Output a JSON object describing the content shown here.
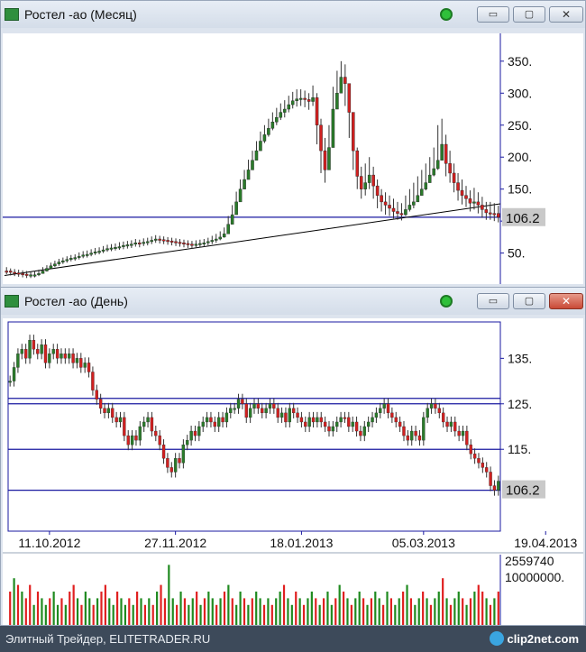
{
  "windows": [
    {
      "title": "Ростел -ао (Месяц)",
      "buttons": {
        "minimize": "▭",
        "maximize": "▢",
        "close": "✕"
      }
    },
    {
      "title": "Ростел -ао (День)",
      "buttons": {
        "minimize": "▭",
        "maximize": "▢",
        "close": "✕"
      }
    }
  ],
  "footer": {
    "left_text": "Элитный Трейдер, ELITETRADER.RU",
    "logo_text": "clip2net.com"
  },
  "colors": {
    "up": "#2a7a2a",
    "down": "#d02020",
    "hline": "#1a1aa0",
    "trend": "#000000",
    "wick": "#333333"
  },
  "chart_data": [
    {
      "type": "candlestick",
      "title": "Ростел -ао (Месяц)",
      "ylim": [
        10,
        385
      ],
      "y_ticks": [
        50,
        100,
        150,
        200,
        250,
        300,
        350
      ],
      "y_tick_labels": [
        "50.",
        "100.",
        "150.",
        "200.",
        "250.",
        "300.",
        "350."
      ],
      "last_price": 106.2,
      "last_price_label": "106.2",
      "horizontal_lines": [
        106
      ],
      "trendline": {
        "from": [
          0,
          15
        ],
        "to": [
          1,
          127
        ]
      },
      "closes": [
        22,
        20,
        19,
        18,
        17,
        16,
        15,
        16,
        18,
        22,
        26,
        30,
        33,
        36,
        38,
        40,
        42,
        43,
        45,
        47,
        48,
        50,
        52,
        53,
        55,
        57,
        58,
        59,
        60,
        62,
        63,
        64,
        66,
        65,
        67,
        68,
        70,
        72,
        71,
        70,
        69,
        68,
        67,
        66,
        65,
        64,
        63,
        64,
        65,
        66,
        68,
        70,
        72,
        75,
        80,
        95,
        110,
        130,
        150,
        165,
        180,
        195,
        210,
        225,
        235,
        245,
        255,
        262,
        270,
        275,
        282,
        288,
        291,
        292,
        290,
        287,
        293,
        250,
        210,
        180,
        215,
        275,
        300,
        325,
        315,
        270,
        210,
        170,
        150,
        160,
        172,
        155,
        140,
        130,
        125,
        120,
        115,
        112,
        110,
        118,
        125,
        130,
        140,
        150,
        160,
        172,
        182,
        195,
        220,
        190,
        175,
        160,
        148,
        140,
        135,
        128,
        130,
        125,
        118,
        113,
        112,
        112,
        106
      ],
      "highs": [
        28,
        26,
        25,
        24,
        23,
        22,
        21,
        22,
        24,
        28,
        31,
        35,
        38,
        41,
        43,
        45,
        47,
        48,
        51,
        53,
        54,
        56,
        58,
        59,
        61,
        63,
        64,
        65,
        67,
        68,
        69,
        70,
        72,
        71,
        73,
        74,
        76,
        78,
        77,
        76,
        75,
        74,
        73,
        72,
        71,
        70,
        69,
        70,
        71,
        72,
        74,
        77,
        80,
        84,
        90,
        108,
        125,
        146,
        165,
        180,
        196,
        210,
        225,
        240,
        250,
        260,
        270,
        277,
        284,
        289,
        296,
        302,
        306,
        306,
        304,
        300,
        312,
        300,
        260,
        230,
        250,
        310,
        335,
        350,
        345,
        310,
        255,
        215,
        185,
        190,
        200,
        185,
        165,
        150,
        145,
        140,
        135,
        130,
        128,
        140,
        150,
        160,
        170,
        180,
        190,
        200,
        215,
        250,
        260,
        235,
        210,
        190,
        175,
        165,
        155,
        148,
        152,
        145,
        138,
        130,
        130,
        128,
        124
      ],
      "lows": [
        17,
        15,
        14,
        13,
        12,
        11,
        11,
        12,
        14,
        18,
        21,
        25,
        28,
        30,
        33,
        35,
        37,
        38,
        40,
        42,
        43,
        45,
        47,
        48,
        50,
        52,
        53,
        54,
        55,
        56,
        57,
        58,
        60,
        59,
        61,
        62,
        64,
        66,
        65,
        64,
        63,
        62,
        61,
        60,
        59,
        58,
        57,
        58,
        59,
        60,
        62,
        64,
        66,
        70,
        74,
        86,
        98,
        116,
        134,
        150,
        165,
        180,
        195,
        210,
        222,
        232,
        242,
        250,
        258,
        262,
        270,
        276,
        279,
        280,
        278,
        274,
        280,
        220,
        175,
        160,
        190,
        255,
        280,
        305,
        280,
        230,
        180,
        150,
        135,
        140,
        150,
        135,
        120,
        115,
        110,
        108,
        104,
        102,
        101,
        108,
        115,
        120,
        130,
        140,
        148,
        160,
        170,
        180,
        195,
        170,
        160,
        145,
        132,
        126,
        122,
        115,
        118,
        112,
        105,
        102,
        102,
        100,
        98
      ],
      "up_flags": [
        0,
        0,
        0,
        0,
        0,
        0,
        1,
        1,
        1,
        1,
        1,
        1,
        1,
        1,
        1,
        1,
        1,
        1,
        1,
        1,
        1,
        1,
        1,
        1,
        1,
        1,
        1,
        1,
        1,
        1,
        1,
        1,
        1,
        0,
        1,
        1,
        1,
        1,
        0,
        0,
        0,
        0,
        0,
        0,
        0,
        0,
        0,
        1,
        1,
        1,
        1,
        1,
        1,
        1,
        1,
        1,
        1,
        1,
        1,
        1,
        1,
        1,
        1,
        1,
        1,
        1,
        1,
        1,
        1,
        1,
        1,
        1,
        1,
        1,
        0,
        0,
        1,
        0,
        0,
        0,
        1,
        1,
        1,
        1,
        0,
        0,
        0,
        0,
        0,
        1,
        1,
        0,
        0,
        0,
        0,
        0,
        0,
        0,
        0,
        1,
        1,
        1,
        1,
        1,
        1,
        1,
        1,
        1,
        1,
        0,
        0,
        0,
        0,
        0,
        0,
        0,
        1,
        0,
        0,
        0,
        0,
        0,
        0
      ]
    },
    {
      "type": "candlestick",
      "title": "Ростел -ао (День)",
      "ylim": [
        97,
        143
      ],
      "y_ticks": [
        115,
        125,
        135
      ],
      "y_tick_labels": [
        "115.",
        "125.",
        "135."
      ],
      "x_tick_labels": [
        "11.10.2012",
        "27.11.2012",
        "18.01.2013",
        "05.03.2013",
        "19.04.2013"
      ],
      "x_tick_index": [
        10,
        42,
        74,
        105,
        136
      ],
      "last_price": 106.2,
      "last_price_label": "106.2",
      "horizontal_lines": [
        106,
        115,
        125,
        126.2
      ],
      "closes": [
        130,
        133,
        136,
        137,
        135,
        139,
        137,
        136,
        138,
        134,
        136,
        137,
        135,
        136,
        135,
        136,
        134,
        135,
        133,
        134,
        132,
        128,
        126,
        124,
        123,
        124,
        122,
        121,
        122,
        118,
        116,
        118,
        117,
        120,
        121,
        122,
        119,
        118,
        116,
        113,
        111,
        110,
        113,
        112,
        116,
        117,
        119,
        118,
        120,
        121,
        122,
        121,
        120,
        122,
        121,
        123,
        124,
        124,
        126,
        125,
        122,
        124,
        125,
        124,
        123,
        124,
        125,
        124,
        122,
        123,
        121,
        124,
        123,
        122,
        121,
        120,
        122,
        121,
        122,
        121,
        120,
        119,
        120,
        121,
        122,
        122,
        120,
        121,
        119,
        118,
        120,
        121,
        122,
        123,
        124,
        125,
        123,
        122,
        121,
        120,
        118,
        117,
        119,
        118,
        117,
        122,
        124,
        125,
        124,
        123,
        121,
        120,
        121,
        119,
        118,
        119,
        116,
        114,
        113,
        112,
        111,
        110,
        107,
        106,
        108
      ],
      "up_flags": [
        1,
        1,
        1,
        1,
        0,
        1,
        0,
        0,
        1,
        0,
        1,
        1,
        0,
        1,
        0,
        1,
        0,
        1,
        0,
        1,
        0,
        0,
        0,
        0,
        0,
        1,
        0,
        0,
        1,
        0,
        0,
        1,
        0,
        1,
        1,
        1,
        0,
        0,
        0,
        0,
        0,
        0,
        1,
        0,
        1,
        1,
        1,
        0,
        1,
        1,
        1,
        0,
        0,
        1,
        0,
        1,
        1,
        1,
        1,
        0,
        0,
        1,
        1,
        0,
        0,
        1,
        1,
        0,
        0,
        1,
        0,
        1,
        0,
        0,
        0,
        0,
        1,
        0,
        1,
        0,
        0,
        0,
        1,
        1,
        1,
        0,
        0,
        1,
        0,
        0,
        1,
        1,
        1,
        1,
        1,
        1,
        0,
        0,
        0,
        0,
        0,
        0,
        1,
        0,
        0,
        1,
        1,
        1,
        0,
        0,
        0,
        0,
        1,
        0,
        0,
        1,
        0,
        0,
        0,
        0,
        0,
        0,
        0,
        0,
        1
      ]
    },
    {
      "type": "bar",
      "title": "Volume",
      "y_tick_labels": [
        "2559740",
        "10000000."
      ],
      "ylim": [
        0,
        15000000
      ],
      "values": [
        5,
        7,
        6,
        5,
        4,
        6,
        3,
        5,
        4,
        3,
        4,
        5,
        3,
        4,
        3,
        5,
        6,
        4,
        3,
        5,
        4,
        3,
        4,
        5,
        6,
        4,
        3,
        5,
        4,
        3,
        4,
        3,
        5,
        4,
        3,
        4,
        3,
        5,
        6,
        4,
        9,
        4,
        3,
        5,
        4,
        3,
        4,
        5,
        3,
        4,
        5,
        4,
        3,
        4,
        5,
        6,
        4,
        3,
        5,
        4,
        3,
        4,
        5,
        4,
        3,
        4,
        3,
        4,
        5,
        6,
        4,
        3,
        5,
        4,
        3,
        4,
        5,
        4,
        3,
        4,
        5,
        3,
        4,
        6,
        5,
        4,
        3,
        4,
        5,
        4,
        3,
        4,
        5,
        4,
        3,
        5,
        4,
        3,
        4,
        5,
        6,
        4,
        3,
        4,
        5,
        4,
        3,
        4,
        5,
        7,
        4,
        3,
        4,
        5,
        4,
        3,
        4,
        5,
        6,
        5,
        4,
        3,
        4,
        5
      ],
      "red_flags": [
        1,
        0,
        1,
        0,
        1,
        1,
        0,
        1,
        0,
        0,
        1,
        0,
        0,
        1,
        0,
        1,
        1,
        0,
        1,
        0,
        0,
        1,
        0,
        1,
        1,
        0,
        0,
        1,
        0,
        0,
        1,
        0,
        1,
        0,
        1,
        0,
        1,
        0,
        1,
        1,
        0,
        0,
        1,
        0,
        1,
        0,
        0,
        1,
        0,
        1,
        0,
        0,
        1,
        0,
        1,
        0,
        1,
        0,
        0,
        1,
        0,
        1,
        0,
        0,
        1,
        0,
        1,
        0,
        0,
        1,
        0,
        0,
        1,
        0,
        1,
        0,
        0,
        1,
        0,
        1,
        0,
        0,
        1,
        0,
        1,
        0,
        1,
        0,
        0,
        1,
        0,
        1,
        0,
        0,
        1,
        0,
        1,
        0,
        0,
        1,
        0,
        1,
        0,
        0,
        1,
        0,
        1,
        0,
        0,
        1,
        0,
        1,
        0,
        0,
        1,
        0,
        1,
        0,
        1,
        1,
        0,
        1,
        0,
        1
      ]
    }
  ]
}
